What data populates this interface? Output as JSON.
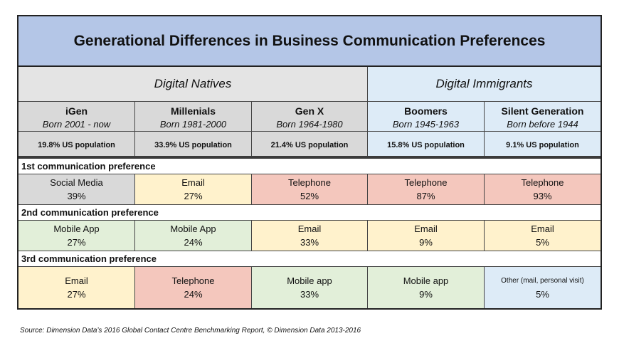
{
  "title": "Generational Differences in Business Communication Preferences",
  "groups": {
    "natives": "Digital Natives",
    "immigrants": "Digital Immigrants"
  },
  "generations": [
    {
      "name": "iGen",
      "born": "Born 2001 - now",
      "population": "19.8%  US population"
    },
    {
      "name": "Millenials",
      "born": "Born 1981-2000",
      "population": "33.9%  US population"
    },
    {
      "name": "Gen X",
      "born": "Born 1964-1980",
      "population": "21.4%  US population"
    },
    {
      "name": "Boomers",
      "born": "Born 1945-1963",
      "population": "15.8%  US population"
    },
    {
      "name": "Silent Generation",
      "born": "Born before  1944",
      "population": "9.1%  US population"
    }
  ],
  "preferences": [
    {
      "label": "1st communication preference",
      "cells": [
        {
          "channel": "Social Media",
          "pct": "39%"
        },
        {
          "channel": "Email",
          "pct": "27%"
        },
        {
          "channel": "Telephone",
          "pct": "52%"
        },
        {
          "channel": "Telephone",
          "pct": "87%"
        },
        {
          "channel": "Telephone",
          "pct": "93%"
        }
      ]
    },
    {
      "label": "2nd communication preference",
      "cells": [
        {
          "channel": "Mobile App",
          "pct": "27%"
        },
        {
          "channel": "Mobile App",
          "pct": "24%"
        },
        {
          "channel": "Email",
          "pct": "33%"
        },
        {
          "channel": "Email",
          "pct": "9%"
        },
        {
          "channel": "Email",
          "pct": "5%"
        }
      ]
    },
    {
      "label": "3rd communication preference",
      "cells": [
        {
          "channel": "Email",
          "pct": "27%"
        },
        {
          "channel": "Telephone",
          "pct": "24%"
        },
        {
          "channel": "Mobile app",
          "pct": "33%"
        },
        {
          "channel": "Mobile app",
          "pct": "9%"
        },
        {
          "channel": "Other (mail, personal visit)",
          "pct": "5%"
        }
      ]
    }
  ],
  "colors": {
    "title_bg": "#b4c6e7",
    "gray": "#d9d9d9",
    "yellow": "#fff2cc",
    "red": "#f4c7bd",
    "green": "#e2efd9",
    "blue": "#ddebf7"
  },
  "source": "Source: Dimension Data’s 2016 Global Contact  Centre Benchmarking Report, © Dimension Data 2013-2016"
}
